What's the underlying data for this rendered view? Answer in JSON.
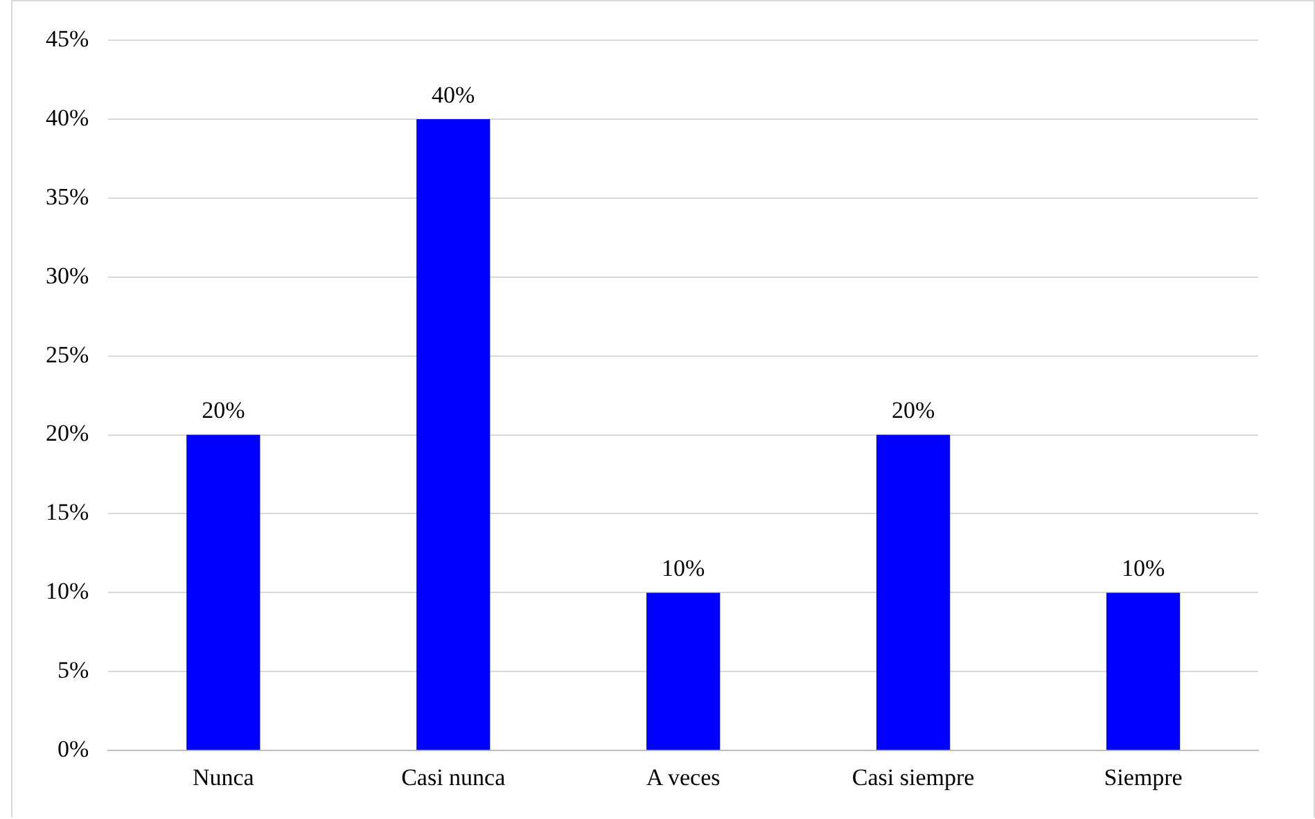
{
  "chart_data": {
    "type": "bar",
    "categories": [
      "Nunca",
      "Casi nunca",
      "A veces",
      "Casi siempre",
      "Siempre"
    ],
    "values": [
      20,
      40,
      10,
      20,
      10
    ],
    "color": "#0000ff",
    "value_labels": [
      "20%",
      "40%",
      "10%",
      "20%",
      "10%"
    ],
    "ylim": [
      0,
      45
    ],
    "yticks": [
      {
        "value": 0,
        "label": "0%"
      },
      {
        "value": 5,
        "label": "5%"
      },
      {
        "value": 10,
        "label": "10%"
      },
      {
        "value": 15,
        "label": "15%"
      },
      {
        "value": 20,
        "label": "20%"
      },
      {
        "value": 25,
        "label": "25%"
      },
      {
        "value": 30,
        "label": "30%"
      },
      {
        "value": 35,
        "label": "35%"
      },
      {
        "value": 40,
        "label": "40%"
      },
      {
        "value": 45,
        "label": "45%"
      }
    ],
    "grid": "y",
    "legend": false
  }
}
